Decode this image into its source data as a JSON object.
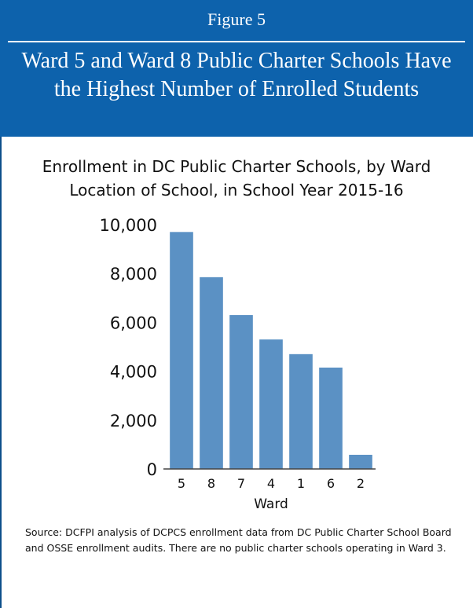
{
  "figure": {
    "label": "Figure 5",
    "title": "Ward 5 and Ward 8 Public Charter Schools Have the Highest Number of Enrolled Students"
  },
  "chart_title": "Enrollment in DC Public Charter Schools, by Ward Location of School, in School Year 2015-16",
  "source_note": "Source: DCFPI analysis of DCPCS enrollment data from DC Public Charter School Board and OSSE enrollment audits. There are no public charter schools operating in Ward 3.",
  "colors": {
    "header": "#0d62ac",
    "bar": "#5b91c4",
    "axis": "#444444"
  },
  "chart_data": {
    "type": "bar",
    "title": "Enrollment in DC Public Charter Schools, by Ward Location of School, in School Year 2015-16",
    "categories": [
      "5",
      "8",
      "7",
      "4",
      "1",
      "6",
      "2"
    ],
    "values": [
      9700,
      7850,
      6300,
      5300,
      4700,
      4150,
      580
    ],
    "xlabel": "Ward",
    "ylabel": "",
    "ylim": [
      0,
      10000
    ],
    "yticks": [
      0,
      2000,
      4000,
      6000,
      8000,
      10000
    ],
    "ytick_labels": [
      "0",
      "2,000",
      "4,000",
      "6,000",
      "8,000",
      "10,000"
    ],
    "grid": false,
    "legend": "none"
  }
}
